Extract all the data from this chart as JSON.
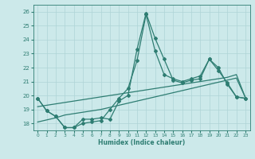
{
  "xlabel": "Humidex (Indice chaleur)",
  "xlim": [
    -0.5,
    23.5
  ],
  "ylim": [
    17.5,
    26.5
  ],
  "xticks": [
    0,
    1,
    2,
    3,
    4,
    5,
    6,
    7,
    8,
    9,
    10,
    11,
    12,
    13,
    14,
    15,
    16,
    17,
    18,
    19,
    20,
    21,
    22,
    23
  ],
  "yticks": [
    18,
    19,
    20,
    21,
    22,
    23,
    24,
    25,
    26
  ],
  "bg_color": "#cce9ea",
  "grid_color": "#afd4d6",
  "line_color": "#2e7d72",
  "lines": [
    {
      "x": [
        0,
        1,
        2,
        3,
        4,
        5,
        6,
        7,
        8,
        9,
        10,
        11,
        12,
        13,
        14,
        15,
        16,
        17,
        18,
        19,
        20,
        21,
        22,
        23
      ],
      "y": [
        19.8,
        18.9,
        18.5,
        17.7,
        17.7,
        18.3,
        18.3,
        18.4,
        18.3,
        19.6,
        20.0,
        23.3,
        25.9,
        24.1,
        22.6,
        21.1,
        20.9,
        21.1,
        21.2,
        22.6,
        22.0,
        20.8,
        19.9,
        19.8
      ],
      "marker": "D",
      "markersize": 2.0,
      "linewidth": 0.9
    },
    {
      "x": [
        0,
        1,
        2,
        3,
        4,
        5,
        6,
        7,
        8,
        9,
        10,
        11,
        12,
        13,
        14,
        15,
        16,
        17,
        18,
        19,
        20,
        21,
        22,
        23
      ],
      "y": [
        19.8,
        18.9,
        18.5,
        17.7,
        17.7,
        18.0,
        18.1,
        18.2,
        19.0,
        19.8,
        20.5,
        22.5,
        25.8,
        23.2,
        21.5,
        21.2,
        21.0,
        21.2,
        21.4,
        22.6,
        21.8,
        20.9,
        19.9,
        19.8
      ],
      "marker": "D",
      "markersize": 2.0,
      "linewidth": 0.9
    },
    {
      "x": [
        0,
        1,
        2,
        3,
        4,
        5,
        6,
        7,
        8,
        9,
        10,
        11,
        12,
        13,
        14,
        15,
        16,
        17,
        18,
        19,
        20,
        21,
        22,
        23
      ],
      "y": [
        19.2,
        19.3,
        19.4,
        19.5,
        19.6,
        19.7,
        19.8,
        19.9,
        20.0,
        20.1,
        20.2,
        20.3,
        20.4,
        20.5,
        20.6,
        20.7,
        20.8,
        20.9,
        21.0,
        21.1,
        21.2,
        21.3,
        21.5,
        19.85
      ],
      "marker": null,
      "markersize": 0,
      "linewidth": 0.9
    },
    {
      "x": [
        0,
        1,
        2,
        3,
        4,
        5,
        6,
        7,
        8,
        9,
        10,
        11,
        12,
        13,
        14,
        15,
        16,
        17,
        18,
        19,
        20,
        21,
        22,
        23
      ],
      "y": [
        18.1,
        18.25,
        18.4,
        18.6,
        18.7,
        18.8,
        18.9,
        19.0,
        19.15,
        19.3,
        19.45,
        19.6,
        19.75,
        19.9,
        20.05,
        20.2,
        20.35,
        20.5,
        20.65,
        20.8,
        20.95,
        21.1,
        21.25,
        19.85
      ],
      "marker": null,
      "markersize": 0,
      "linewidth": 0.9
    }
  ]
}
